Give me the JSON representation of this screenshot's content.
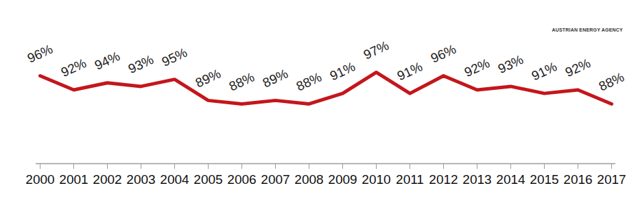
{
  "chart_data": {
    "type": "line",
    "categories": [
      "2000",
      "2001",
      "2002",
      "2003",
      "2004",
      "2005",
      "2006",
      "2007",
      "2008",
      "2009",
      "2010",
      "2011",
      "2012",
      "2013",
      "2014",
      "2015",
      "2016",
      "2017"
    ],
    "values": [
      96,
      92,
      94,
      93,
      95,
      89,
      88,
      89,
      88,
      91,
      97,
      91,
      96,
      92,
      93,
      91,
      92,
      88
    ],
    "value_labels": [
      "96%",
      "92%",
      "94%",
      "93%",
      "95%",
      "89%",
      "88%",
      "89%",
      "88%",
      "91%",
      "97%",
      "91%",
      "96%",
      "92%",
      "93%",
      "91%",
      "92%",
      "88%"
    ],
    "color": "#c4161c",
    "ylim": [
      71,
      117.5
    ],
    "yticks": [],
    "grid": false,
    "data_labels": true,
    "tick_labels": "x",
    "annotations": [
      "AUSTRIAN ENERGY AGENCY"
    ]
  }
}
